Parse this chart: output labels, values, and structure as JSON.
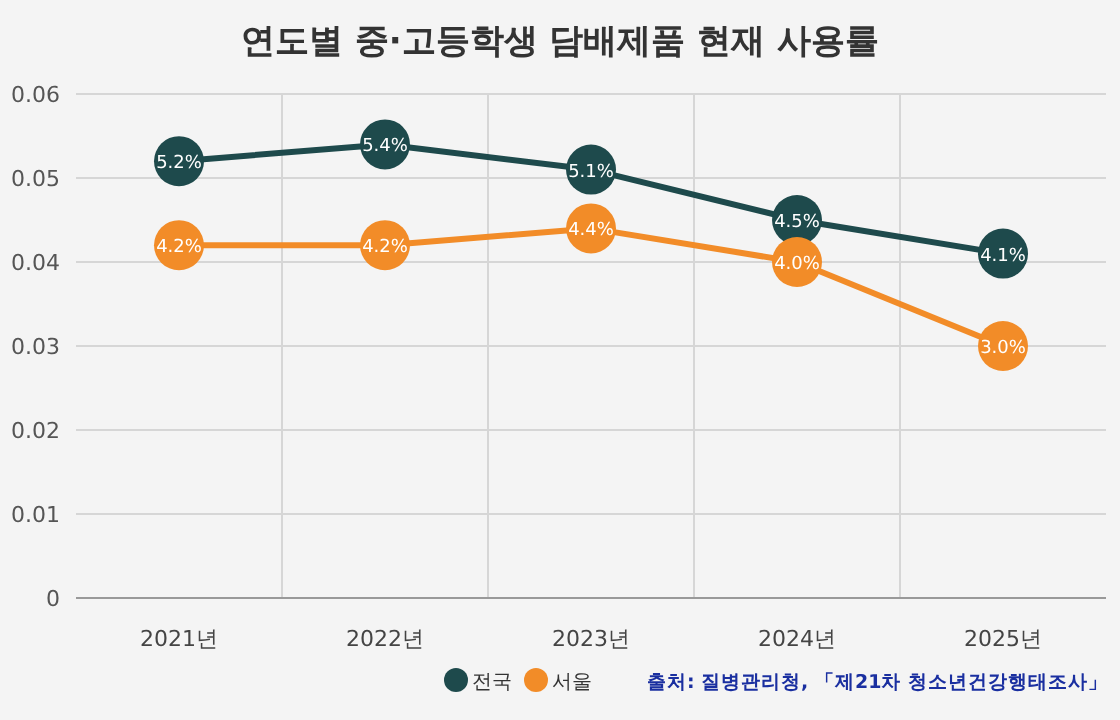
{
  "chart_data": {
    "type": "line",
    "title": "연도별 중·고등학생 담배제품 현재 사용률",
    "categories": [
      "2021년",
      "2022년",
      "2023년",
      "2024년",
      "2025년"
    ],
    "series": [
      {
        "name": "전국",
        "color": "#1e4a4c",
        "values": [
          0.052,
          0.054,
          0.051,
          0.045,
          0.041
        ],
        "value_labels": [
          "5.2%",
          "5.4%",
          "5.1%",
          "4.5%",
          "4.1%"
        ]
      },
      {
        "name": "서울",
        "color": "#f28c28",
        "values": [
          0.042,
          0.042,
          0.044,
          0.04,
          0.03
        ],
        "value_labels": [
          "4.2%",
          "4.2%",
          "4.4%",
          "4.0%",
          "3.0%"
        ]
      }
    ],
    "ylim": [
      0,
      0.06
    ],
    "yticks": [
      {
        "value": 0,
        "label": "0"
      },
      0.01,
      0.02,
      0.03,
      0.04,
      0.05,
      0.06
    ],
    "grid": true,
    "legend": "bottom",
    "marker": "circle",
    "line_style": "solid",
    "annotations": [
      "출처: 질병관리청, 「제21차 청소년건강행태조사」"
    ]
  }
}
